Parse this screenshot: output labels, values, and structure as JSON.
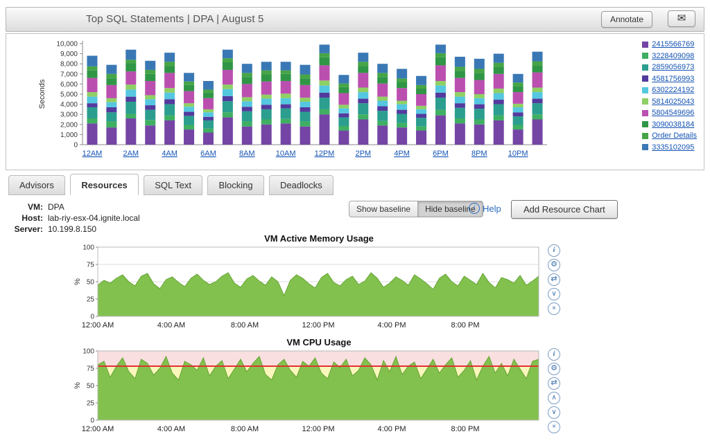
{
  "header": {
    "title": "Top SQL Statements   |   DPA   |   August 5",
    "annotate": "Annotate",
    "mail_icon": "✉"
  },
  "tabs": [
    {
      "label": "Advisors",
      "selected": false
    },
    {
      "label": "Resources",
      "selected": true
    },
    {
      "label": "SQL Text",
      "selected": false
    },
    {
      "label": "Blocking",
      "selected": false
    },
    {
      "label": "Deadlocks",
      "selected": false
    }
  ],
  "meta": {
    "vm_label": "VM:",
    "vm_value": "DPA",
    "host_label": "Host:",
    "host_value": "lab-riy-esx-04.ignite.local",
    "server_label": "Server:",
    "server_value": "10.199.8.150"
  },
  "controls": {
    "show_baseline": "Show baseline",
    "hide_baseline": "Hide baseline",
    "help": "Help",
    "add_resource_chart": "Add Resource Chart"
  },
  "icon_glyphs": {
    "info": "i",
    "gear": "⚙",
    "swap-arrows": "⇄",
    "chevron-up": "∧",
    "chevron-down": "∨",
    "close": "×"
  },
  "chart_data": [
    {
      "type": "bar",
      "stacked": true,
      "title": "Top SQL Statements",
      "ylabel": "Seconds",
      "ylim": [
        0,
        10000
      ],
      "y_tick_labels": [
        "0",
        "1,000",
        "2,000",
        "3,000",
        "4,000",
        "5,000",
        "6,000",
        "7,000",
        "8,000",
        "9,000",
        "10,000"
      ],
      "x_labels": [
        "12AM",
        "2AM",
        "4AM",
        "6AM",
        "8AM",
        "10AM",
        "12PM",
        "2PM",
        "4PM",
        "6PM",
        "8PM",
        "10PM"
      ],
      "bars_per_label": 2,
      "series": [
        {
          "name": "2415566769",
          "color": "#7445a5",
          "values": [
            2100,
            1700,
            2600,
            1900,
            2400,
            1500,
            1200,
            2700,
            1800,
            2000,
            2100,
            1800,
            3000,
            1400,
            2500,
            1900,
            1700,
            1400,
            2900,
            2100,
            2000,
            2400,
            1500,
            2500
          ]
        },
        {
          "name": "3228409098",
          "color": "#3faf62",
          "values": [
            500,
            600,
            450,
            550,
            500,
            450,
            400,
            500,
            500,
            500,
            450,
            500,
            500,
            450,
            500,
            450,
            450,
            400,
            550,
            500,
            500,
            500,
            450,
            500
          ]
        },
        {
          "name": "2859056973",
          "color": "#2b9e8f",
          "values": [
            1100,
            900,
            1200,
            1000,
            1100,
            900,
            800,
            1100,
            1000,
            1000,
            1050,
            950,
            1150,
            850,
            1100,
            1000,
            900,
            850,
            1200,
            1050,
            1050,
            1100,
            850,
            1100
          ]
        },
        {
          "name": "4581756993",
          "color": "#533a9e",
          "values": [
            400,
            500,
            500,
            450,
            500,
            400,
            350,
            500,
            450,
            450,
            400,
            450,
            500,
            400,
            450,
            450,
            400,
            400,
            500,
            450,
            450,
            450,
            400,
            450
          ]
        },
        {
          "name": "6302224192",
          "color": "#55c7e0",
          "values": [
            650,
            500,
            700,
            600,
            650,
            500,
            450,
            700,
            550,
            600,
            600,
            550,
            700,
            500,
            650,
            550,
            550,
            450,
            700,
            650,
            600,
            650,
            500,
            650
          ]
        },
        {
          "name": "5814025043",
          "color": "#8fd065",
          "values": [
            450,
            400,
            500,
            400,
            450,
            350,
            300,
            450,
            400,
            400,
            450,
            400,
            500,
            350,
            450,
            400,
            350,
            350,
            450,
            450,
            400,
            450,
            350,
            450
          ]
        },
        {
          "name": "5804549696",
          "color": "#bb4fb0",
          "values": [
            1400,
            1300,
            1300,
            1400,
            1500,
            1200,
            1100,
            1450,
            1300,
            1300,
            1250,
            1250,
            1500,
            1150,
            1450,
            1300,
            1250,
            1150,
            1550,
            1400,
            1400,
            1450,
            1150,
            1500
          ]
        },
        {
          "name": "3090038184",
          "color": "#2f9646",
          "values": [
            750,
            650,
            800,
            700,
            700,
            600,
            550,
            750,
            700,
            700,
            700,
            650,
            800,
            600,
            700,
            650,
            600,
            550,
            800,
            700,
            700,
            700,
            600,
            700
          ]
        },
        {
          "name": "Order Details",
          "color": "#46a546",
          "values": [
            400,
            450,
            350,
            400,
            400,
            350,
            300,
            400,
            400,
            400,
            350,
            400,
            400,
            350,
            400,
            400,
            350,
            350,
            400,
            400,
            400,
            400,
            350,
            400
          ]
        },
        {
          "name": "3335102095",
          "color": "#3a78b5",
          "values": [
            1050,
            900,
            1000,
            900,
            900,
            850,
            850,
            850,
            900,
            850,
            850,
            950,
            850,
            850,
            900,
            900,
            950,
            900,
            850,
            1000,
            1000,
            900,
            850,
            950
          ]
        }
      ]
    },
    {
      "type": "area",
      "title": "VM Active Memory Usage",
      "ylabel": "%",
      "ylim": [
        0,
        100
      ],
      "y_ticks": [
        0,
        25,
        50,
        75,
        100
      ],
      "x_labels": [
        "12:00 AM",
        "4:00 AM",
        "8:00 AM",
        "12:00 PM",
        "4:00 PM",
        "8:00 PM"
      ],
      "fill": "#83c14f",
      "stroke": "#64a433",
      "values": [
        45,
        52,
        48,
        55,
        60,
        50,
        44,
        58,
        62,
        47,
        40,
        53,
        57,
        49,
        43,
        55,
        61,
        52,
        46,
        50,
        58,
        63,
        48,
        42,
        54,
        59,
        51,
        45,
        57,
        50,
        30,
        52,
        60,
        55,
        47,
        41,
        56,
        62,
        49,
        44,
        53,
        58,
        46,
        51,
        63,
        55,
        42,
        48,
        57,
        52,
        45,
        60,
        54,
        47,
        39,
        55,
        61,
        50,
        44,
        58,
        52,
        46,
        62,
        49,
        41,
        56,
        53,
        48,
        59,
        45,
        51,
        58
      ],
      "icons": [
        "info",
        "gear",
        "swap-arrows",
        "chevron-down",
        "close"
      ]
    },
    {
      "type": "area",
      "title": "VM CPU Usage",
      "ylabel": "%",
      "ylim": [
        0,
        100
      ],
      "y_ticks": [
        0,
        25,
        50,
        75,
        100
      ],
      "x_labels": [
        "12:00 AM",
        "4:00 AM",
        "8:00 AM",
        "12:00 PM",
        "4:00 PM",
        "8:00 PM"
      ],
      "plot_bg": "#f9dfdf",
      "baseline_band": {
        "from": 50,
        "to": 78,
        "color": "#f9f6bb"
      },
      "threshold": {
        "value": 78,
        "color": "#e03131"
      },
      "fill": "#83c14f",
      "stroke": "#64a433",
      "values": [
        80,
        85,
        62,
        78,
        90,
        70,
        60,
        88,
        82,
        65,
        75,
        92,
        68,
        58,
        85,
        80,
        72,
        90,
        64,
        78,
        86,
        60,
        74,
        88,
        70,
        82,
        92,
        66,
        58,
        80,
        88,
        72,
        62,
        85,
        78,
        90,
        68,
        60,
        84,
        76,
        88,
        64,
        72,
        90,
        80,
        58,
        86,
        70,
        92,
        66,
        78,
        84,
        60,
        74,
        88,
        68,
        80,
        90,
        62,
        72,
        86,
        58,
        78,
        92,
        68,
        82,
        64,
        88,
        74,
        60,
        85,
        88
      ],
      "icons": [
        "info",
        "gear",
        "swap-arrows",
        "chevron-up",
        "chevron-down",
        "close"
      ]
    }
  ]
}
